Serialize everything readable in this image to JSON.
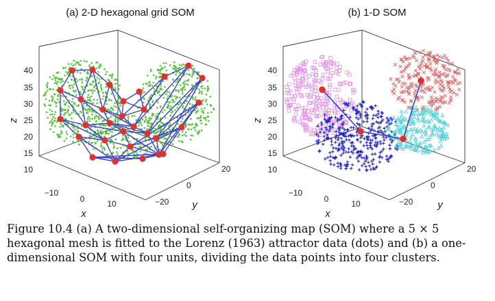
{
  "figure": {
    "panels": [
      {
        "title": "(a) 2-D hexagonal grid SOM",
        "z_axis": {
          "label": "z",
          "ticks": [
            "10",
            "15",
            "20",
            "25",
            "30",
            "35",
            "40"
          ]
        },
        "x_axis": {
          "label": "x",
          "ticks": [
            "−10",
            "0",
            "10"
          ]
        },
        "y_axis": {
          "label": "y",
          "ticks": [
            "−20",
            "0",
            "20"
          ]
        }
      },
      {
        "title": "(b) 1-D SOM",
        "z_axis": {
          "label": "z",
          "ticks": [
            "10",
            "15",
            "20",
            "25",
            "30",
            "35",
            "40"
          ]
        },
        "x_axis": {
          "label": "x",
          "ticks": [
            "−10",
            "0",
            "10"
          ]
        },
        "y_axis": {
          "label": "y",
          "ticks": [
            "−20",
            "0",
            "20"
          ]
        }
      }
    ],
    "colors": {
      "data_dots": "#55c43a",
      "som_mesh": "#3a3fd6",
      "som_units": "#e03030",
      "cluster_magenta": "#e58ae8",
      "cluster_blue": "#1e1ec8",
      "cluster_red": "#e06060",
      "cluster_cyan": "#44d0d8"
    },
    "marker_names": [
      "square",
      "plus",
      "cross",
      "triangle"
    ],
    "caption": "Figure 10.4 (a) A two-dimensional self-organizing map (SOM) where a 5 × 5 hexagonal mesh is fitted to the Lorenz (1963) attractor data (dots) and (b) a one-dimensional SOM with four units, dividing the data points into four clusters."
  }
}
